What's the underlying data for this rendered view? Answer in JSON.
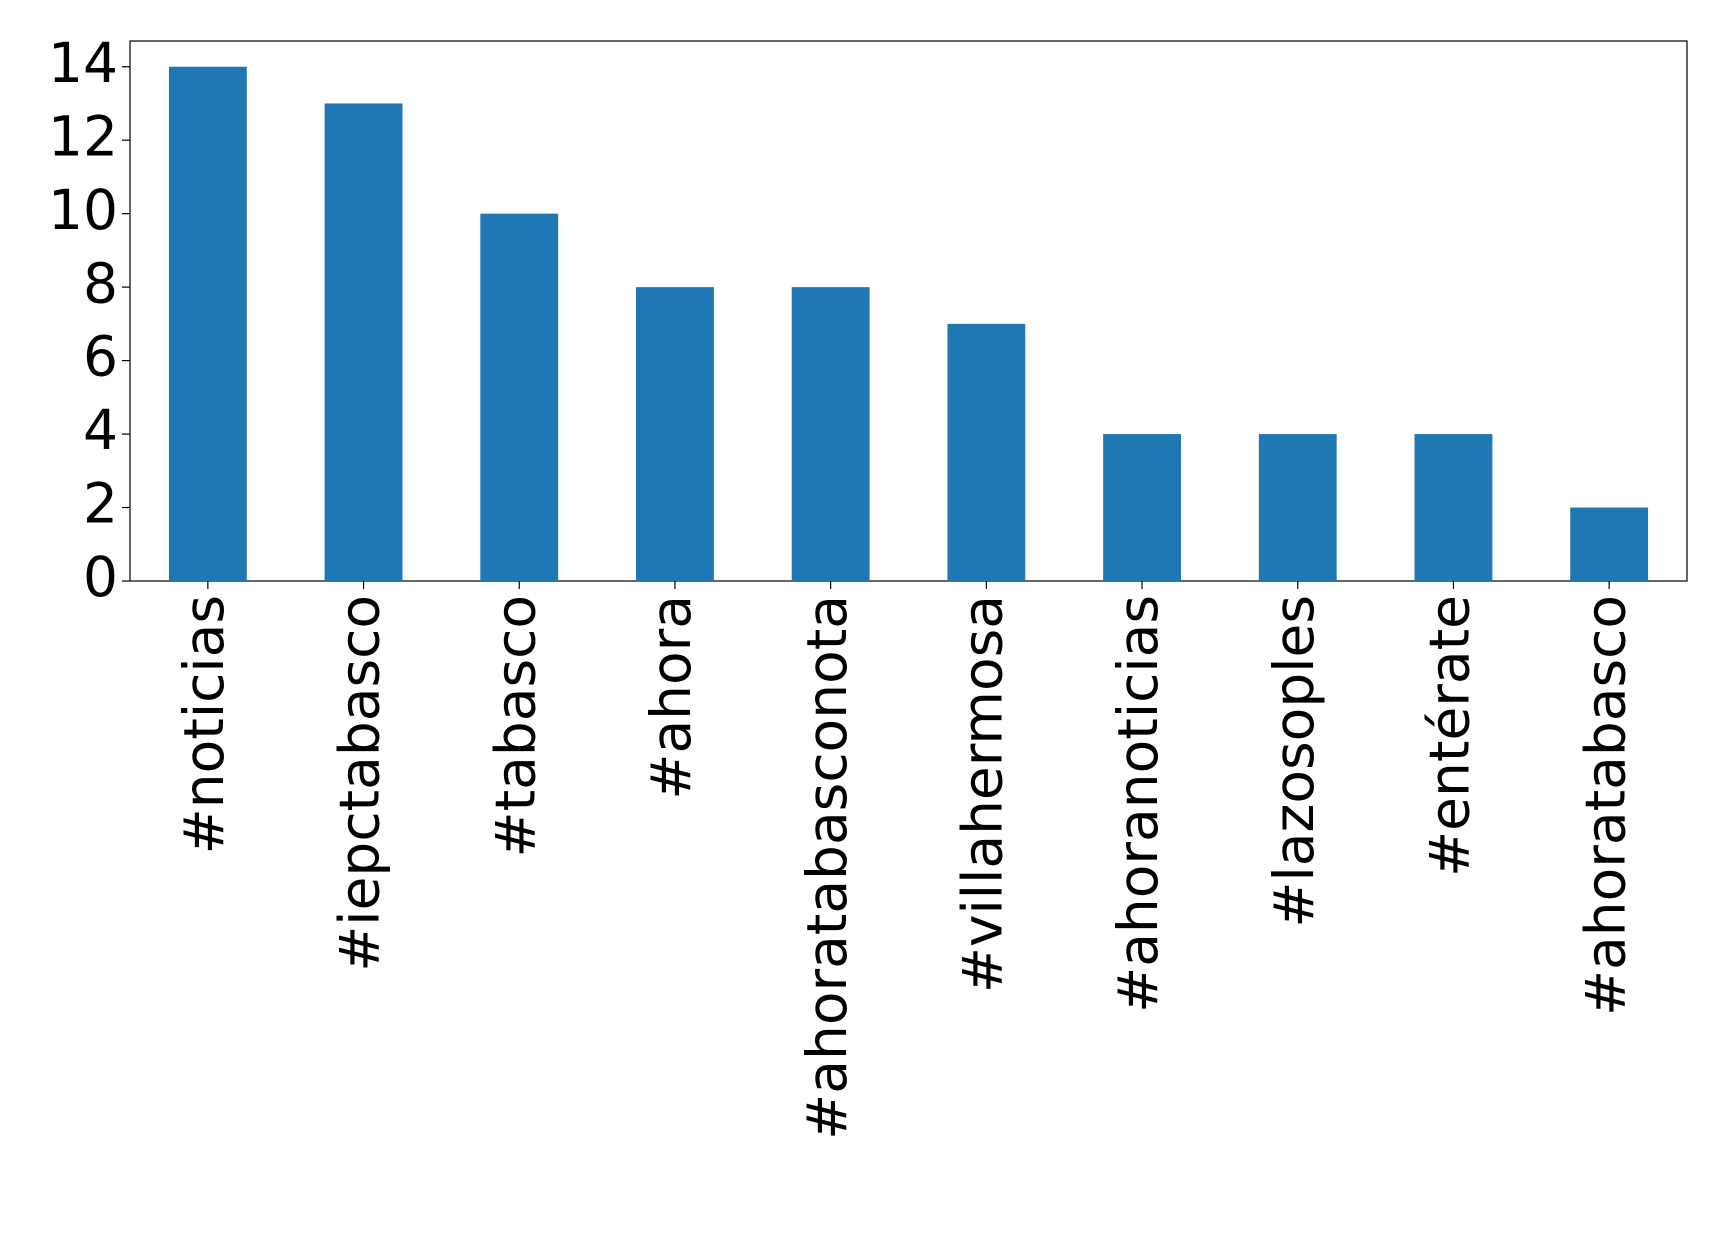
{
  "chart_data": {
    "type": "bar",
    "categories": [
      "#noticias",
      "#iepctabasco",
      "#tabasco",
      "#ahora",
      "#ahoratabasconota",
      "#villahermosa",
      "#ahoranoticias",
      "#lazosoples",
      "#entérate",
      "#ahoratabasco"
    ],
    "values": [
      14,
      13,
      10,
      8,
      8,
      7,
      4,
      4,
      4,
      2
    ],
    "color": "#1f77b4",
    "ylim": [
      0,
      14.7
    ],
    "yticks": [
      0,
      2,
      4,
      6,
      8,
      10,
      12,
      14
    ],
    "grid": false
  }
}
